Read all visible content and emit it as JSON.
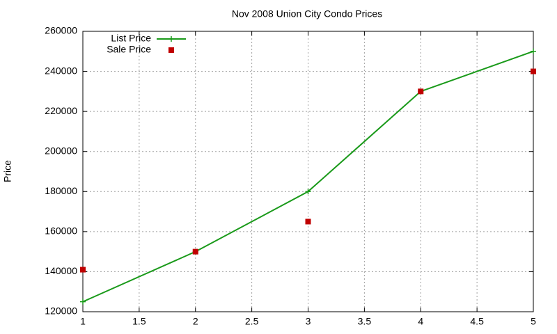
{
  "chart_data": {
    "type": "line",
    "title": "Nov 2008 Union City Condo Prices",
    "y_label": "Price",
    "x": [
      1,
      2,
      3,
      4,
      5
    ],
    "series": [
      {
        "name": "List Price",
        "color": "#1a9a1a",
        "mode": "lines+markers",
        "values": [
          125000,
          150000,
          180000,
          230000,
          250000
        ]
      },
      {
        "name": "Sale Price",
        "color": "#c00000",
        "mode": "markers",
        "values": [
          141000,
          150000,
          165000,
          230000,
          240000
        ]
      }
    ],
    "xlim": [
      1,
      5
    ],
    "xticks": [
      1,
      1.5,
      2,
      2.5,
      3,
      3.5,
      4,
      4.5,
      5
    ],
    "ylim": [
      120000,
      260000
    ],
    "yticks": [
      120000,
      140000,
      160000,
      180000,
      200000,
      220000,
      240000,
      260000
    ],
    "grid": true,
    "legend": "top-left"
  }
}
